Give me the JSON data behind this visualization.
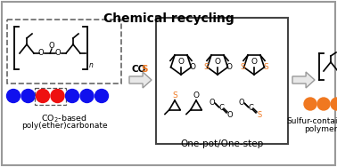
{
  "title": "Chemical recycling",
  "title_fontsize": 10,
  "title_fontweight": "bold",
  "bg_color": "#ffffff",
  "border_color": "#888888",
  "orange": "#F07820",
  "blue": "#1010EE",
  "red": "#EE1010",
  "left_label1": "CO$_2$-based",
  "left_label2": "poly(ether)carbonate",
  "right_label1": "Sulfur-containing",
  "right_label2": "polymer",
  "center_label": "One-pot/One-step",
  "cos_text": "CO",
  "cos_s": "S"
}
